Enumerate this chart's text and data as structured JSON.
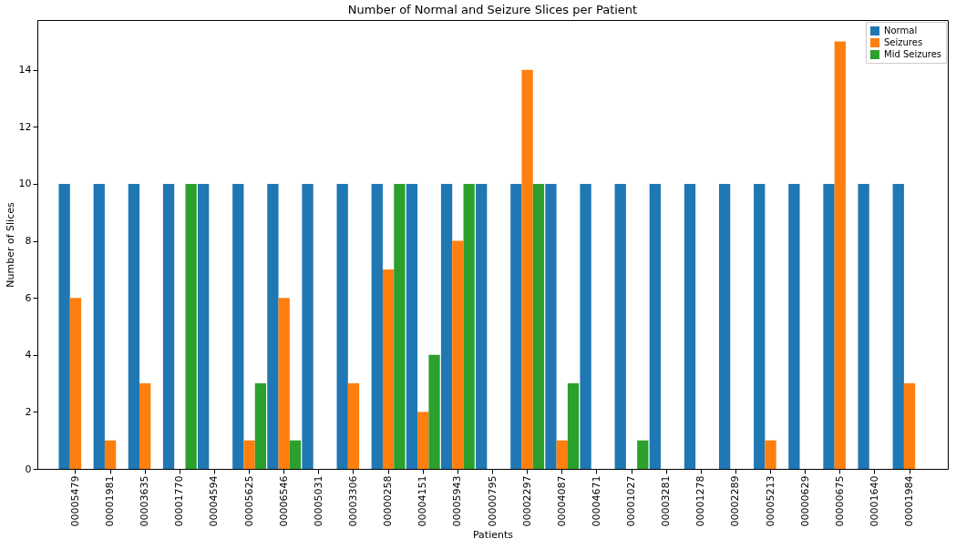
{
  "chart_data": {
    "type": "bar",
    "title": "Number of Normal and Seizure Slices per Patient",
    "xlabel": "Patients",
    "ylabel": "Number of Slices",
    "categories": [
      "00005479",
      "00001981",
      "00003635",
      "00001770",
      "00004594",
      "00005625",
      "00006546",
      "00005031",
      "00003306",
      "00000258",
      "00004151",
      "00005943",
      "00000795",
      "00002297",
      "00004087",
      "00004671",
      "00001027",
      "00003281",
      "00001278",
      "00002289",
      "00005213",
      "00000629",
      "00000675",
      "00001640",
      "00001984"
    ],
    "series": [
      {
        "name": "Normal",
        "color": "#1f77b4",
        "values": [
          10,
          10,
          10,
          10,
          10,
          10,
          10,
          10,
          10,
          10,
          10,
          10,
          10,
          10,
          10,
          10,
          10,
          10,
          10,
          10,
          10,
          10,
          10,
          10,
          10
        ]
      },
      {
        "name": "Seizures",
        "color": "#ff7f0e",
        "values": [
          6,
          1,
          3,
          0,
          0,
          1,
          6,
          0,
          3,
          7,
          2,
          8,
          0,
          14,
          1,
          0,
          0,
          0,
          0,
          0,
          1,
          0,
          15,
          0,
          3
        ]
      },
      {
        "name": "Mid Seizures",
        "color": "#2ca02c",
        "values": [
          0,
          0,
          0,
          10,
          0,
          3,
          1,
          0,
          0,
          10,
          4,
          10,
          0,
          10,
          3,
          0,
          1,
          0,
          0,
          0,
          0,
          0,
          0,
          0,
          0
        ]
      }
    ],
    "ylim": [
      0,
      15.75
    ],
    "yticks": [
      0,
      2,
      4,
      6,
      8,
      10,
      12,
      14
    ],
    "grid": false,
    "legend": "top right"
  }
}
